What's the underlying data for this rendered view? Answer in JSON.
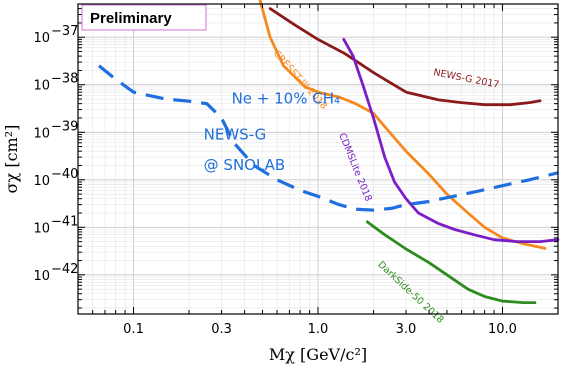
{
  "chart_data": {
    "type": "line",
    "title": "",
    "xlabel": "Mχ [GeV/c²]",
    "ylabel": "σχ [cm²]",
    "xscale": "log",
    "yscale": "log",
    "xlim": [
      0.05,
      20
    ],
    "ylim": [
      1.5e-43,
      5e-37
    ],
    "grid": true,
    "legend": "none",
    "x_tick_labels": [
      "0.1",
      "0.3",
      "1.0",
      "3.0",
      "10.0"
    ],
    "x_tick_values": [
      0.1,
      0.3,
      1.0,
      3.0,
      10.0
    ],
    "y_tick_labels": [
      {
        "base": "10",
        "exp": "−37",
        "value": -37
      },
      {
        "base": "10",
        "exp": "−38",
        "value": -38
      },
      {
        "base": "10",
        "exp": "−39",
        "value": -39
      },
      {
        "base": "10",
        "exp": "−40",
        "value": -40
      },
      {
        "base": "10",
        "exp": "−41",
        "value": -41
      },
      {
        "base": "10",
        "exp": "−42",
        "value": -42
      }
    ],
    "badge": "Preliminary",
    "annotations": [
      {
        "text": "Ne + 10% CH₄",
        "color": "#1f6fe0",
        "x": 0.34,
        "y": 4e-39
      },
      {
        "text": "NEWS-G",
        "color": "#1f6fe0",
        "x": 0.24,
        "y": 7e-40
      },
      {
        "text": "@ SNOLAB",
        "color": "#1f6fe0",
        "x": 0.24,
        "y": 1.6e-40
      }
    ],
    "series": [
      {
        "name": "NEWS-G 2017",
        "color": "#8b1a1a",
        "dash": "solid",
        "points": [
          [
            0.55,
            4e-37
          ],
          [
            0.75,
            1.8e-37
          ],
          [
            1.0,
            9e-38
          ],
          [
            1.4,
            4.5e-38
          ],
          [
            2.0,
            1.8e-38
          ],
          [
            3.0,
            7e-39
          ],
          [
            4.5,
            4.8e-39
          ],
          [
            6.0,
            4.2e-39
          ],
          [
            8.0,
            3.8e-39
          ],
          [
            11.0,
            3.8e-39
          ],
          [
            14.0,
            4.2e-39
          ],
          [
            16.0,
            4.6e-39
          ]
        ]
      },
      {
        "name": "CRESST-III 2018",
        "color": "#f5891f",
        "dash": "solid",
        "points": [
          [
            0.48,
            7e-37
          ],
          [
            0.55,
            1e-37
          ],
          [
            0.65,
            2.5e-38
          ],
          [
            0.85,
            9e-39
          ],
          [
            1.0,
            7e-39
          ],
          [
            1.3,
            5.5e-39
          ],
          [
            1.6,
            4e-39
          ],
          [
            2.0,
            2.5e-39
          ],
          [
            2.5,
            9e-40
          ],
          [
            3.0,
            4e-40
          ],
          [
            4.0,
            1.3e-40
          ],
          [
            5.0,
            5e-41
          ],
          [
            6.5,
            2e-41
          ],
          [
            8.0,
            1e-41
          ],
          [
            10.0,
            6e-42
          ],
          [
            13.0,
            4.5e-42
          ],
          [
            17.0,
            3.6e-42
          ]
        ]
      },
      {
        "name": "CDMSLite 2018",
        "color": "#7a1fc7",
        "dash": "solid",
        "points": [
          [
            1.38,
            9e-38
          ],
          [
            1.55,
            4e-38
          ],
          [
            1.75,
            1e-38
          ],
          [
            2.0,
            2e-39
          ],
          [
            2.3,
            3e-40
          ],
          [
            2.6,
            9e-41
          ],
          [
            3.0,
            4e-41
          ],
          [
            3.5,
            2e-41
          ],
          [
            4.5,
            1.2e-41
          ],
          [
            5.5,
            9e-42
          ],
          [
            7.0,
            7e-42
          ],
          [
            9.0,
            5.5e-42
          ],
          [
            12.0,
            5e-42
          ],
          [
            16.0,
            5e-42
          ],
          [
            20.0,
            5.5e-42
          ]
        ]
      },
      {
        "name": "DarkSide-50 2018",
        "color": "#2e8b1f",
        "dash": "solid",
        "points": [
          [
            1.85,
            1.3e-41
          ],
          [
            2.3,
            7e-42
          ],
          [
            3.0,
            3.5e-42
          ],
          [
            4.0,
            1.8e-42
          ],
          [
            5.0,
            1e-42
          ],
          [
            6.5,
            5e-43
          ],
          [
            8.0,
            3.5e-43
          ],
          [
            10.0,
            2.8e-43
          ],
          [
            13.0,
            2.6e-43
          ],
          [
            15.0,
            2.6e-43
          ]
        ]
      },
      {
        "name": "NEWS-G @ SNOLAB",
        "color": "#1f6fe0",
        "dash": "dashed",
        "points": [
          [
            0.065,
            2.5e-38
          ],
          [
            0.08,
            1.3e-38
          ],
          [
            0.1,
            7e-39
          ],
          [
            0.15,
            5e-39
          ],
          [
            0.2,
            4.5e-39
          ],
          [
            0.25,
            4e-39
          ],
          [
            0.3,
            2e-39
          ],
          [
            0.35,
            6e-40
          ],
          [
            0.45,
            2e-40
          ],
          [
            0.6,
            1e-40
          ],
          [
            0.8,
            6e-41
          ],
          [
            1.0,
            4.5e-41
          ],
          [
            1.3,
            3e-41
          ],
          [
            1.6,
            2.4e-41
          ],
          [
            2.0,
            2.3e-41
          ],
          [
            2.5,
            2.5e-41
          ],
          [
            3.0,
            3e-41
          ],
          [
            4.0,
            3.5e-41
          ],
          [
            5.0,
            4.2e-41
          ],
          [
            7.0,
            5.5e-41
          ],
          [
            10.0,
            7.5e-41
          ],
          [
            14.0,
            1e-40
          ],
          [
            20.0,
            1.4e-40
          ]
        ]
      }
    ],
    "series_labels": [
      {
        "text": "NEWS-G 2017",
        "color": "#8b1a1a",
        "x": 4.2,
        "y": 1.6e-38,
        "angle": 11
      },
      {
        "text": "CRESST-III 2018",
        "color": "#f5891f",
        "x": 0.57,
        "y": 4.5e-38,
        "angle": 48
      },
      {
        "text": "CDMSLite 2018",
        "color": "#7a1fc7",
        "x": 1.3,
        "y": 9e-40,
        "angle": 68
      },
      {
        "text": "DarkSide-50 2018",
        "color": "#2e8b1f",
        "x": 2.1,
        "y": 1.6e-42,
        "angle": 43
      }
    ]
  }
}
